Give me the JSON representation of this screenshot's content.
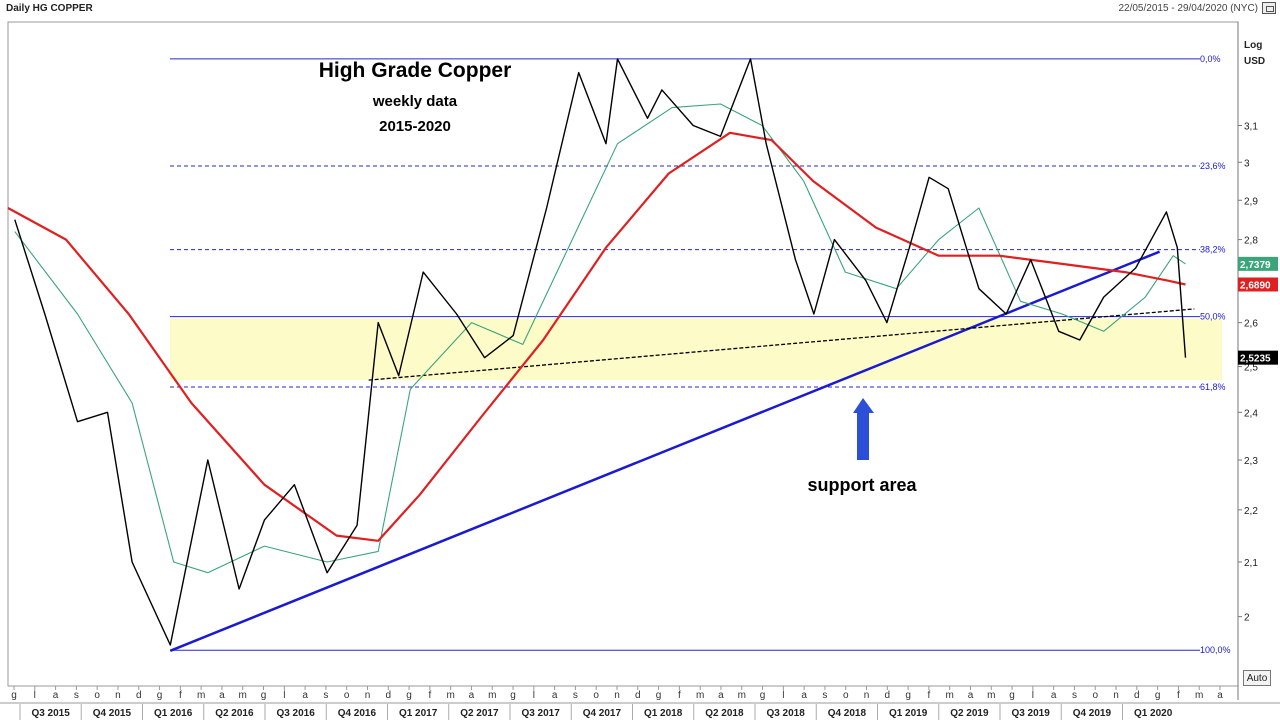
{
  "header": {
    "instrument": "Daily HG COPPER",
    "range": "22/05/2015 - 29/04/2020 (NYC)"
  },
  "axis": {
    "scale": "Log",
    "unit": "USD",
    "auto_button": "Auto"
  },
  "chart_data": {
    "type": "line",
    "title": "High Grade Copper",
    "subtitle_lines": [
      "weekly data",
      "2015-2020"
    ],
    "y_scale": "log",
    "ylim": [
      1.88,
      3.4
    ],
    "y_ticks": [
      2.0,
      2.1,
      2.2,
      2.3,
      2.4,
      2.5,
      2.6,
      2.7,
      2.8,
      2.9,
      3.0,
      3.1
    ],
    "y_tick_labels": [
      "2",
      "2,1",
      "2,2",
      "2,3",
      "2,4",
      "2,5",
      "2,6",
      "2,7",
      "2,8",
      "2,9",
      "3",
      "3,1"
    ],
    "x_month_labels": [
      "g",
      "l",
      "a",
      "s",
      "o",
      "n",
      "d",
      "g",
      "f",
      "m",
      "a",
      "m",
      "g",
      "l",
      "a",
      "s",
      "o",
      "n",
      "d",
      "g",
      "f",
      "m",
      "a",
      "m",
      "g",
      "l",
      "a",
      "s",
      "o",
      "n",
      "d",
      "g",
      "f",
      "m",
      "a",
      "m",
      "g",
      "l",
      "a",
      "s",
      "o",
      "n",
      "d",
      "g",
      "f",
      "m",
      "a",
      "m",
      "g",
      "l",
      "a",
      "s",
      "o",
      "n",
      "d",
      "g",
      "f",
      "m",
      "a"
    ],
    "x_quarter_labels": [
      "Q3 2015",
      "Q4 2015",
      "Q1 2016",
      "Q2 2016",
      "Q3 2016",
      "Q4 2016",
      "Q1 2017",
      "Q2 2017",
      "Q3 2017",
      "Q4 2017",
      "Q1 2018",
      "Q2 2018",
      "Q3 2018",
      "Q4 2018",
      "Q1 2019",
      "Q2 2019",
      "Q3 2019",
      "Q4 2019",
      "Q1 2020"
    ],
    "fibonacci": [
      {
        "label": "0,0%",
        "value": 3.29
      },
      {
        "label": "23,6%",
        "value": 2.99
      },
      {
        "label": "38,2%",
        "value": 2.775
      },
      {
        "label": "50,0%",
        "value": 2.614
      },
      {
        "label": "61,8%",
        "value": 2.455
      },
      {
        "label": "100,0%",
        "value": 1.941
      }
    ],
    "support_zone": {
      "from": 2.47,
      "to": 2.61,
      "label": "support area"
    },
    "series": [
      {
        "style": "price",
        "color": "#000000",
        "x": [
          "2015-06-01",
          "2015-07-15",
          "2015-09-01",
          "2015-10-15",
          "2015-11-20",
          "2016-01-15",
          "2016-03-10",
          "2016-04-25",
          "2016-06-01",
          "2016-07-15",
          "2016-09-01",
          "2016-10-15",
          "2016-11-15",
          "2016-12-15",
          "2017-01-20",
          "2017-03-10",
          "2017-04-20",
          "2017-06-01",
          "2017-07-20",
          "2017-09-05",
          "2017-10-15",
          "2017-11-01",
          "2017-12-15",
          "2018-01-05",
          "2018-02-20",
          "2018-04-01",
          "2018-05-15",
          "2018-06-07",
          "2018-07-20",
          "2018-08-16",
          "2018-09-15",
          "2018-10-31",
          "2018-12-01",
          "2019-01-03",
          "2019-02-01",
          "2019-03-01",
          "2019-04-15",
          "2019-05-25",
          "2019-06-30",
          "2019-08-10",
          "2019-09-10",
          "2019-10-15",
          "2019-12-01",
          "2020-01-15",
          "2020-01-31",
          "2020-02-12"
        ],
        "values": [
          2.85,
          2.62,
          2.38,
          2.4,
          2.1,
          1.95,
          2.3,
          2.05,
          2.18,
          2.25,
          2.08,
          2.17,
          2.6,
          2.48,
          2.72,
          2.62,
          2.52,
          2.57,
          2.88,
          3.25,
          3.05,
          3.29,
          3.12,
          3.2,
          3.1,
          3.07,
          3.29,
          3.05,
          2.75,
          2.62,
          2.8,
          2.7,
          2.6,
          2.78,
          2.96,
          2.93,
          2.68,
          2.62,
          2.75,
          2.58,
          2.56,
          2.66,
          2.73,
          2.87,
          2.78,
          2.52
        ]
      },
      {
        "style": "ma_short",
        "color": "#3aa57a",
        "last_value": "2,7379",
        "x": [
          "2015-06-01",
          "2015-09-01",
          "2015-11-20",
          "2016-01-20",
          "2016-03-10",
          "2016-06-01",
          "2016-09-01",
          "2016-11-15",
          "2017-01-01",
          "2017-04-01",
          "2017-06-15",
          "2017-09-01",
          "2017-11-01",
          "2018-01-20",
          "2018-04-01",
          "2018-06-01",
          "2018-08-01",
          "2018-10-01",
          "2018-12-15",
          "2019-02-15",
          "2019-04-15",
          "2019-06-15",
          "2019-08-15",
          "2019-10-15",
          "2019-12-15",
          "2020-01-25",
          "2020-02-12"
        ],
        "values": [
          2.82,
          2.62,
          2.42,
          2.1,
          2.08,
          2.13,
          2.1,
          2.12,
          2.45,
          2.6,
          2.55,
          2.82,
          3.05,
          3.15,
          3.16,
          3.1,
          2.95,
          2.72,
          2.68,
          2.8,
          2.88,
          2.65,
          2.62,
          2.58,
          2.66,
          2.76,
          2.74
        ]
      },
      {
        "style": "ma_long",
        "color": "#e02020",
        "last_value": "2,6890",
        "x": [
          "2015-05-22",
          "2015-08-15",
          "2015-11-15",
          "2016-02-15",
          "2016-06-01",
          "2016-09-15",
          "2016-11-15",
          "2017-01-15",
          "2017-04-15",
          "2017-07-15",
          "2017-10-15",
          "2018-01-15",
          "2018-04-15",
          "2018-06-15",
          "2018-08-15",
          "2018-11-15",
          "2019-02-15",
          "2019-05-15",
          "2019-08-15",
          "2019-11-15",
          "2020-01-15",
          "2020-02-12"
        ],
        "values": [
          2.88,
          2.8,
          2.62,
          2.42,
          2.25,
          2.15,
          2.14,
          2.23,
          2.39,
          2.56,
          2.78,
          2.97,
          3.08,
          3.06,
          2.95,
          2.83,
          2.76,
          2.76,
          2.74,
          2.72,
          2.7,
          2.69
        ]
      }
    ],
    "last_price": "2,5235",
    "trendlines": [
      {
        "style": "solid",
        "color": "#1a1ad0",
        "x": [
          "2016-01-15",
          "2020-01-05"
        ],
        "values": [
          1.94,
          2.77
        ]
      },
      {
        "style": "dashed",
        "color": "#000000",
        "x": [
          "2016-11-01",
          "2020-02-25"
        ],
        "values": [
          2.47,
          2.632
        ]
      }
    ]
  }
}
